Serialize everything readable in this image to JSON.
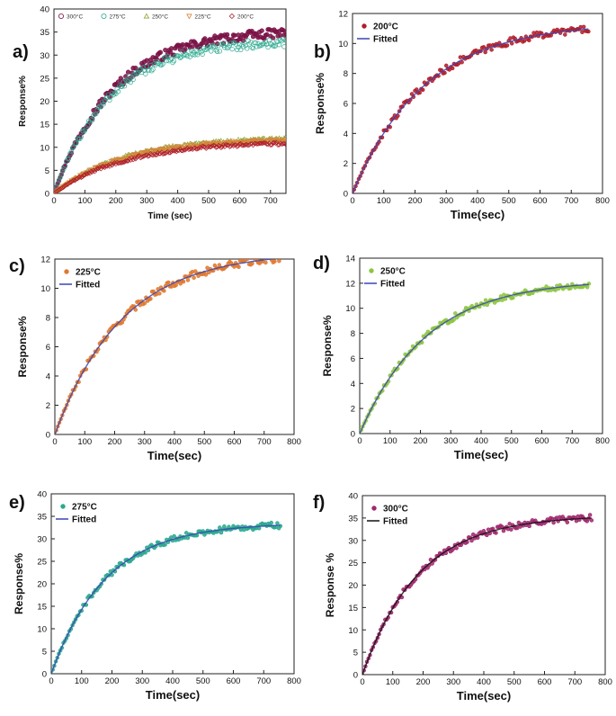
{
  "chart_data": [
    {
      "panel": "a)",
      "type": "scatter",
      "xlabel": "Time (sec)",
      "ylabel": "Response%",
      "xlim": [
        0,
        750
      ],
      "ylim": [
        0,
        40
      ],
      "xticks": [
        0,
        100,
        200,
        300,
        400,
        500,
        600,
        700
      ],
      "yticks": [
        0,
        5,
        10,
        15,
        20,
        25,
        30,
        35,
        40
      ],
      "legend_position": "top",
      "series": [
        {
          "name": "300°C",
          "color": "#7a1246",
          "marker": "circle",
          "plateau": 35.5,
          "tau": 190
        },
        {
          "name": "275°C",
          "color": "#2aa88e",
          "marker": "circle",
          "plateau": 33.2,
          "tau": 180
        },
        {
          "name": "250°C",
          "color": "#8aa534",
          "marker": "triangle",
          "plateau": 12.2,
          "tau": 220
        },
        {
          "name": "225°C",
          "color": "#d8843a",
          "marker": "triangle-down",
          "plateau": 12.0,
          "tau": 225
        },
        {
          "name": "200°C",
          "color": "#b01e2a",
          "marker": "diamond",
          "plateau": 11.3,
          "tau": 230
        }
      ]
    },
    {
      "panel": "b)",
      "type": "scatter",
      "xlabel": "Time(sec)",
      "ylabel": "Response%",
      "xlim": [
        0,
        800
      ],
      "ylim": [
        0,
        12
      ],
      "xticks": [
        0,
        100,
        200,
        300,
        400,
        500,
        600,
        700,
        800
      ],
      "yticks": [
        0,
        2,
        4,
        6,
        8,
        10,
        12
      ],
      "legend_position": "top-left",
      "series": [
        {
          "name": "200°C",
          "color": "#b01e2a",
          "marker": "circle",
          "plateau": 11.4,
          "tau": 230
        },
        {
          "name": "Fitted",
          "color": "#3b44b3",
          "marker": "line"
        }
      ]
    },
    {
      "panel": "c)",
      "type": "scatter",
      "xlabel": "Time(sec)",
      "ylabel": "Response%",
      "xlim": [
        0,
        800
      ],
      "ylim": [
        0,
        12
      ],
      "xticks": [
        0,
        100,
        200,
        300,
        400,
        500,
        600,
        700,
        800
      ],
      "yticks": [
        0,
        2,
        4,
        6,
        8,
        10,
        12
      ],
      "legend_position": "top-left",
      "series": [
        {
          "name": "225°C",
          "color": "#e0782e",
          "marker": "circle",
          "plateau": 12.5,
          "tau": 225
        },
        {
          "name": "Fitted",
          "color": "#3b44b3",
          "marker": "line"
        }
      ]
    },
    {
      "panel": "d)",
      "type": "scatter",
      "xlabel": "Time(sec)",
      "ylabel": "Response%",
      "xlim": [
        0,
        800
      ],
      "ylim": [
        0,
        14
      ],
      "xticks": [
        0,
        100,
        200,
        300,
        400,
        500,
        600,
        700,
        800
      ],
      "yticks": [
        0,
        2,
        4,
        6,
        8,
        10,
        12,
        14
      ],
      "legend_position": "top-left",
      "series": [
        {
          "name": "250°C",
          "color": "#8cc63f",
          "marker": "circle",
          "plateau": 12.3,
          "tau": 220
        },
        {
          "name": "Fitted",
          "color": "#3b44b3",
          "marker": "line"
        }
      ]
    },
    {
      "panel": "e)",
      "type": "scatter",
      "xlabel": "Time(sec)",
      "ylabel": "Response%",
      "xlim": [
        0,
        800
      ],
      "ylim": [
        0,
        40
      ],
      "xticks": [
        0,
        100,
        200,
        300,
        400,
        500,
        600,
        700,
        800
      ],
      "yticks": [
        0,
        5,
        10,
        15,
        20,
        25,
        30,
        35,
        40
      ],
      "legend_position": "top-left",
      "series": [
        {
          "name": "275°C",
          "color": "#2aa88e",
          "marker": "circle",
          "plateau": 33.5,
          "tau": 180
        },
        {
          "name": "Fitted",
          "color": "#3b44b3",
          "marker": "line"
        }
      ]
    },
    {
      "panel": "f)",
      "type": "scatter",
      "xlabel": "Time(sec)",
      "ylabel": "Response %",
      "xlim": [
        0,
        800
      ],
      "ylim": [
        0,
        40
      ],
      "xticks": [
        0,
        100,
        200,
        300,
        400,
        500,
        600,
        700,
        800
      ],
      "yticks": [
        0,
        5,
        10,
        15,
        20,
        25,
        30,
        35,
        40
      ],
      "legend_position": "top-left",
      "series": [
        {
          "name": "300°C",
          "color": "#a0286e",
          "marker": "circle",
          "plateau": 35.6,
          "tau": 185
        },
        {
          "name": "Fitted",
          "color": "#111111",
          "marker": "line"
        }
      ]
    }
  ]
}
